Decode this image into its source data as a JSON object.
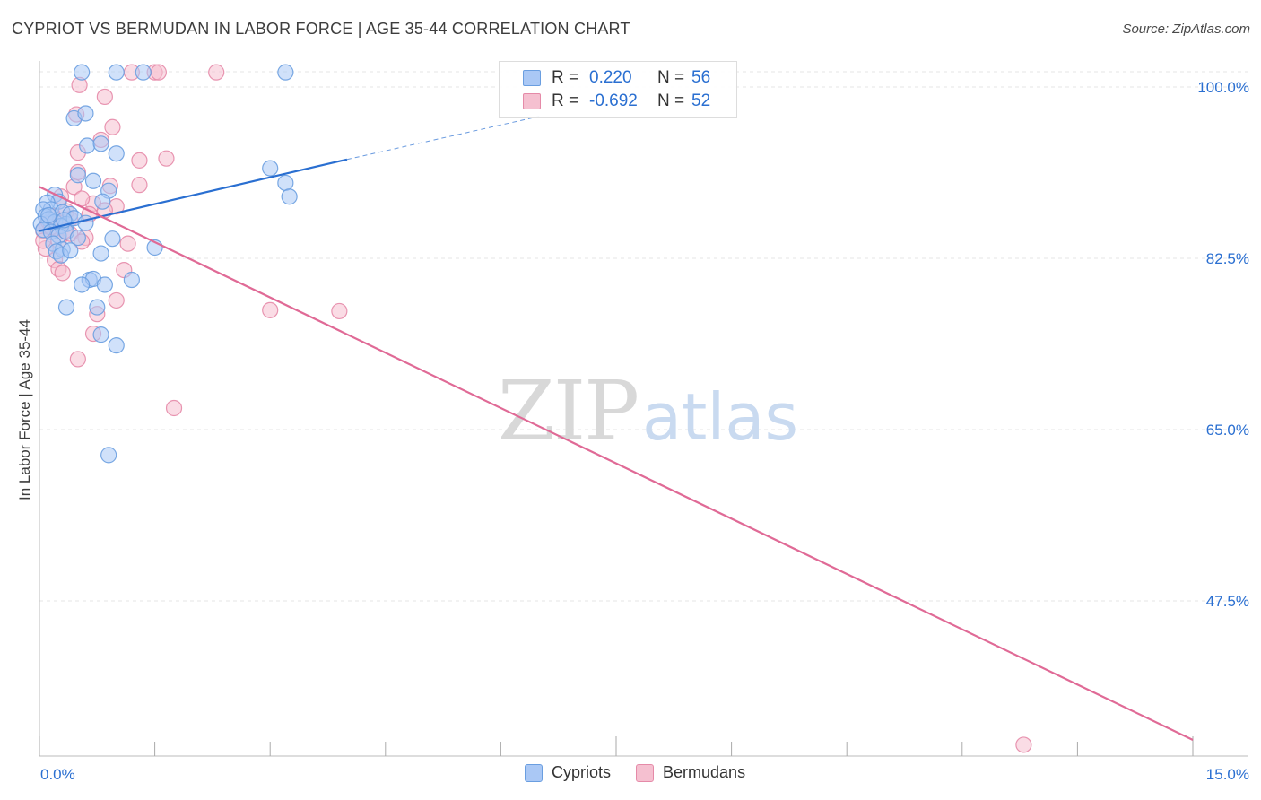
{
  "chart_data": {
    "type": "scatter",
    "title": "CYPRIOT VS BERMUDAN IN LABOR FORCE | AGE 35-44 CORRELATION CHART",
    "source": "Source: ZipAtlas.com",
    "xlabel": "",
    "ylabel": "In Labor Force | Age 35-44",
    "xlim": [
      0,
      15
    ],
    "ylim": [
      32.5,
      102
    ],
    "x_tick_labels": [
      "0.0%",
      "15.0%"
    ],
    "y_ticks": [
      100,
      82.5,
      65,
      47.5
    ],
    "y_tick_labels": [
      "100.0%",
      "82.5%",
      "65.0%",
      "47.5%"
    ],
    "grid": true,
    "legend_position": "top-center",
    "watermark": "ZIPatlas",
    "legend_entries": [
      {
        "r_label": "R =",
        "r": "0.220",
        "n_label": "N =",
        "n": "56"
      },
      {
        "r_label": "R =",
        "r": "-0.692",
        "n_label": "N =",
        "n": "52"
      }
    ],
    "series": [
      {
        "name": "Cypriots",
        "color": "#6a9ee0",
        "fill": "#aac8f5",
        "line_color": "#2a6fd1",
        "trend": {
          "x0": 0.0,
          "y0": 85.3,
          "x1": 4.0,
          "y1": 92.6,
          "dashed_to_x": 6.5,
          "dashed_to_y": 97.0
        },
        "points": [
          [
            0.55,
            101.5
          ],
          [
            1.0,
            101.5
          ],
          [
            1.35,
            101.5
          ],
          [
            3.2,
            101.5
          ],
          [
            0.45,
            96.8
          ],
          [
            0.6,
            97.3
          ],
          [
            0.62,
            94.0
          ],
          [
            0.8,
            94.2
          ],
          [
            1.0,
            93.2
          ],
          [
            0.5,
            91.0
          ],
          [
            0.7,
            90.4
          ],
          [
            0.9,
            89.4
          ],
          [
            0.82,
            88.3
          ],
          [
            3.0,
            91.7
          ],
          [
            3.2,
            90.2
          ],
          [
            3.25,
            88.8
          ],
          [
            0.2,
            89.0
          ],
          [
            0.25,
            88.3
          ],
          [
            0.1,
            88.2
          ],
          [
            0.15,
            87.5
          ],
          [
            0.3,
            87.2
          ],
          [
            0.4,
            87.0
          ],
          [
            0.05,
            87.5
          ],
          [
            0.08,
            86.8
          ],
          [
            0.12,
            86.5
          ],
          [
            0.2,
            86.2
          ],
          [
            0.35,
            86.0
          ],
          [
            0.45,
            86.6
          ],
          [
            0.28,
            85.8
          ],
          [
            0.02,
            86.0
          ],
          [
            0.05,
            85.4
          ],
          [
            0.15,
            85.2
          ],
          [
            0.25,
            84.8
          ],
          [
            0.35,
            85.2
          ],
          [
            0.5,
            84.6
          ],
          [
            0.18,
            84.0
          ],
          [
            0.3,
            83.4
          ],
          [
            0.22,
            83.2
          ],
          [
            0.28,
            82.8
          ],
          [
            0.4,
            83.3
          ],
          [
            0.8,
            83.0
          ],
          [
            0.95,
            84.5
          ],
          [
            1.5,
            83.6
          ],
          [
            1.2,
            80.3
          ],
          [
            0.65,
            80.3
          ],
          [
            0.7,
            80.4
          ],
          [
            0.85,
            79.8
          ],
          [
            0.55,
            79.8
          ],
          [
            0.35,
            77.5
          ],
          [
            0.75,
            77.5
          ],
          [
            0.8,
            74.7
          ],
          [
            1.0,
            73.6
          ],
          [
            0.9,
            62.4
          ],
          [
            0.12,
            86.9
          ],
          [
            0.6,
            86.1
          ],
          [
            0.32,
            86.4
          ]
        ]
      },
      {
        "name": "Bermudans",
        "color": "#e58aa8",
        "fill": "#f5c0d0",
        "line_color": "#e06a96",
        "trend": {
          "x0": 0.0,
          "y0": 89.8,
          "x1": 15.0,
          "y1": 33.3
        },
        "points": [
          [
            1.2,
            101.5
          ],
          [
            1.5,
            101.5
          ],
          [
            1.55,
            101.5
          ],
          [
            2.3,
            101.5
          ],
          [
            0.52,
            100.2
          ],
          [
            0.85,
            99.0
          ],
          [
            0.48,
            97.2
          ],
          [
            0.95,
            95.9
          ],
          [
            0.8,
            94.6
          ],
          [
            0.5,
            93.3
          ],
          [
            1.3,
            92.5
          ],
          [
            1.65,
            92.7
          ],
          [
            0.5,
            91.3
          ],
          [
            1.3,
            90.0
          ],
          [
            0.45,
            89.8
          ],
          [
            0.92,
            89.9
          ],
          [
            0.7,
            88.1
          ],
          [
            0.55,
            88.6
          ],
          [
            1.0,
            87.8
          ],
          [
            0.35,
            87.3
          ],
          [
            0.28,
            88.8
          ],
          [
            0.15,
            86.4
          ],
          [
            0.1,
            85.9
          ],
          [
            0.05,
            85.3
          ],
          [
            0.4,
            85.0
          ],
          [
            0.25,
            84.3
          ],
          [
            0.6,
            84.6
          ],
          [
            0.55,
            84.2
          ],
          [
            0.08,
            83.5
          ],
          [
            0.2,
            82.3
          ],
          [
            0.25,
            81.4
          ],
          [
            0.3,
            81.0
          ],
          [
            1.15,
            84.0
          ],
          [
            1.1,
            81.3
          ],
          [
            1.0,
            78.2
          ],
          [
            3.0,
            77.2
          ],
          [
            3.9,
            77.1
          ],
          [
            0.75,
            76.8
          ],
          [
            0.7,
            74.8
          ],
          [
            0.5,
            72.2
          ],
          [
            1.75,
            67.2
          ],
          [
            12.8,
            32.8
          ],
          [
            0.18,
            86.8
          ],
          [
            0.3,
            86.1
          ],
          [
            0.12,
            86.2
          ],
          [
            0.22,
            85.6
          ],
          [
            0.4,
            86.5
          ],
          [
            0.65,
            87.0
          ],
          [
            0.05,
            84.3
          ],
          [
            0.15,
            85.7
          ],
          [
            0.33,
            85.3
          ],
          [
            0.85,
            87.4
          ]
        ]
      }
    ]
  }
}
